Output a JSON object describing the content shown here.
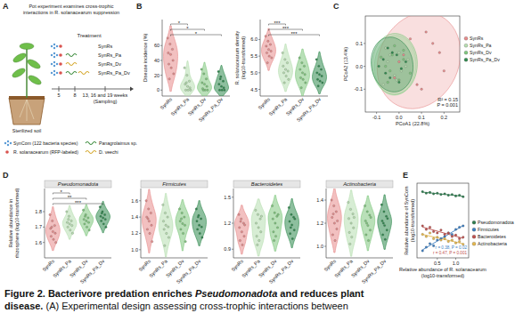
{
  "diagram_A": {
    "label": "A",
    "title": [
      "Pot experiment examines cross-trophic",
      "interactions in R. solanacearum suppression"
    ],
    "treatment_heading": "Treatment",
    "treatments": [
      "SynRs",
      "SynRs_Pa",
      "SynRs_Dv",
      "SynRs_Pa_Dv"
    ],
    "timeline": [
      "5",
      "8",
      "13, 16 and 19 weeks"
    ],
    "timeline_note": "(Sampling)",
    "soil_label": "Sterilized soil",
    "legend": [
      {
        "label": "SynCom (122 bacteria species)",
        "color": "#5b9bd5"
      },
      {
        "label": "R. solanacearum (RFP-labeled)",
        "color": "#d9534f"
      },
      {
        "label": "Panagrolaimus sp.",
        "color": "#3a8a3a"
      },
      {
        "label": "D. veechi",
        "color": "#d4a62a"
      }
    ]
  },
  "chart_data": [
    {
      "type": "violin",
      "label": "B",
      "ylabel": [
        "Disease incidence (%)"
      ],
      "categories": [
        "SynRs",
        "SynRs_Pa",
        "SynRs_Dv",
        "SynRs_Pa_Dv"
      ],
      "colors": [
        "#e88c8c",
        "#b7dfb0",
        "#7fc77d",
        "#2f8a4e"
      ],
      "values": [
        [
          70,
          62,
          55,
          50,
          48,
          40,
          35,
          30,
          22,
          15
        ],
        [
          30,
          20,
          12,
          8,
          5,
          3,
          0,
          0,
          0,
          10
        ],
        [
          28,
          22,
          15,
          10,
          8,
          5,
          2,
          0,
          0,
          0
        ],
        [
          25,
          18,
          12,
          8,
          5,
          3,
          0,
          0,
          0,
          15
        ]
      ],
      "ylim": [
        -8,
        95
      ],
      "yticks": [
        0,
        20,
        40,
        60
      ],
      "significance": [
        {
          "pair": [
            "SynRs",
            "SynRs_Pa"
          ],
          "label": "*"
        },
        {
          "pair": [
            "SynRs",
            "SynRs_Dv"
          ],
          "label": "*"
        },
        {
          "pair": [
            "SynRs",
            "SynRs_Pa_Dv"
          ],
          "label": "*"
        }
      ]
    },
    {
      "type": "violin",
      "ylabel": [
        "R. solanacearum density",
        "(log10-transformed)"
      ],
      "categories": [
        "SynRs",
        "SynRs_Pa",
        "SynRs_Dv",
        "SynRs_Pa_Dv"
      ],
      "colors": [
        "#e88c8c",
        "#b7dfb0",
        "#7fc77d",
        "#2f8a4e"
      ],
      "values": [
        [
          6.1,
          5.95,
          5.85,
          5.8,
          5.7,
          5.65,
          5.6,
          5.5,
          5.45,
          5.3
        ],
        [
          5.6,
          5.4,
          5.3,
          5.2,
          5.1,
          5.05,
          5.0,
          4.9,
          4.8,
          4.7
        ],
        [
          5.45,
          5.3,
          5.2,
          5.1,
          5.0,
          4.95,
          4.85,
          4.8,
          4.7,
          4.55
        ],
        [
          5.4,
          5.2,
          5.1,
          5.0,
          4.95,
          4.9,
          4.8,
          4.75,
          4.7,
          4.6
        ]
      ],
      "ylim": [
        4.3,
        6.6
      ],
      "yticks": [
        4.5,
        {
          "value": 5,
          "label": "5.0"
        },
        5.5,
        {
          "value": 6,
          "label": "6.0"
        }
      ],
      "significance": [
        {
          "pair": [
            "SynRs",
            "SynRs_Pa"
          ],
          "label": "***"
        },
        {
          "pair": [
            "SynRs",
            "SynRs_Dv"
          ],
          "label": "***"
        },
        {
          "pair": [
            "SynRs",
            "SynRs_Pa_Dv"
          ],
          "label": "***"
        }
      ]
    },
    {
      "type": "scatter",
      "label": "C",
      "xlabel": [
        "PCoA1 (22.8%)"
      ],
      "ylabel": [
        "PCoA2 (13.4%)"
      ],
      "xlim": [
        -0.15,
        0.27
      ],
      "ylim": [
        -0.2,
        0.22
      ],
      "xticks": [
        -0.1,
        {
          "value": 0,
          "label": "0.0"
        },
        0.1,
        0.2
      ],
      "yticks": [
        -0.1,
        {
          "value": 0,
          "label": "0.0"
        },
        0.1
      ],
      "legend": "right",
      "annotations": [
        "R² = 0.15",
        "P = 0.001"
      ],
      "series": [
        {
          "name": "SynRs",
          "color": "#e88c8c",
          "line_style": "ellipse",
          "x": [
            0.02,
            0.08,
            0.15,
            0.2,
            0.12,
            -0.02,
            0.05,
            0.18,
            0.1,
            0.0
          ],
          "values": [
            0.05,
            -0.08,
            0.1,
            -0.02,
            0.15,
            -0.05,
            0.12,
            0.06,
            -0.1,
            0.02
          ]
        },
        {
          "name": "SynRs_Pa",
          "color": "#b7dfb0",
          "line_style": "ellipse",
          "x": [
            -0.05,
            -0.02,
            0.0,
            0.03,
            -0.07,
            -0.04,
            0.01,
            0.04,
            -0.06,
            -0.01
          ],
          "values": [
            0.02,
            -0.04,
            0.06,
            0.0,
            -0.08,
            0.05,
            -0.02,
            0.03,
            0.08,
            -0.06
          ]
        },
        {
          "name": "SynRs_Dv",
          "color": "#7fc77d",
          "line_style": "ellipse",
          "x": [
            -0.06,
            -0.03,
            0.0,
            0.02,
            -0.08,
            -0.04,
            0.02,
            0.05,
            -0.05,
            -0.02
          ],
          "values": [
            0.0,
            0.05,
            -0.06,
            0.03,
            0.04,
            -0.02,
            0.07,
            -0.03,
            -0.07,
            0.09
          ]
        },
        {
          "name": "SynRs_Pa_Dv",
          "color": "#2f8a4e",
          "line_style": "ellipse",
          "x": [
            -0.07,
            -0.04,
            -0.01,
            0.01,
            -0.09,
            -0.05,
            0.0,
            0.03,
            -0.06,
            -0.03
          ],
          "values": [
            0.03,
            -0.05,
            0.05,
            -0.01,
            0.0,
            0.08,
            -0.07,
            0.02,
            -0.03,
            0.06
          ]
        }
      ]
    },
    {
      "type": "violin",
      "label": "D",
      "title": "Pseudomonadota",
      "ylabel": [
        "Relative abundance in",
        "rhizosphere (log10-transformed)"
      ],
      "categories": [
        "SynRs",
        "SynRs_Pa",
        "SynRs_Dv",
        "SynRs_Pa_Dv"
      ],
      "colors": [
        "#e88c8c",
        "#b7dfb0",
        "#7fc77d",
        "#2f8a4e"
      ],
      "values": [
        [
          1.78,
          1.74,
          1.71,
          1.69,
          1.67,
          1.66,
          1.64,
          1.62,
          1.6,
          1.7
        ],
        [
          1.8,
          1.77,
          1.74,
          1.73,
          1.72,
          1.71,
          1.7,
          1.68,
          1.66,
          1.75
        ],
        [
          1.81,
          1.78,
          1.76,
          1.75,
          1.74,
          1.73,
          1.72,
          1.7,
          1.68,
          1.77
        ],
        [
          1.83,
          1.8,
          1.78,
          1.77,
          1.76,
          1.75,
          1.74,
          1.72,
          1.7,
          1.79
        ]
      ],
      "ylim": [
        1.5,
        1.95
      ],
      "yticks": [
        1.6,
        1.7,
        1.8
      ],
      "significance": [
        {
          "pair": [
            "SynRs",
            "SynRs_Pa"
          ],
          "label": "*"
        },
        {
          "pair": [
            "SynRs",
            "SynRs_Dv"
          ],
          "label": "**"
        },
        {
          "pair": [
            "SynRs",
            "SynRs_Pa_Dv"
          ],
          "label": "***"
        }
      ]
    },
    {
      "type": "violin",
      "title": "Firmicutes",
      "categories": [
        "SynRs",
        "SynRs_Pa",
        "SynRs_Dv",
        "SynRs_Pa_Dv"
      ],
      "colors": [
        "#e88c8c",
        "#b7dfb0",
        "#7fc77d",
        "#2f8a4e"
      ],
      "values": [
        [
          1.6,
          1.5,
          1.45,
          1.4,
          1.35,
          1.3,
          1.25,
          1.2,
          1.1,
          1.38
        ],
        [
          1.55,
          1.45,
          1.4,
          1.35,
          1.3,
          1.28,
          1.25,
          1.2,
          1.15,
          1.05
        ],
        [
          1.5,
          1.45,
          1.4,
          1.35,
          1.32,
          1.3,
          1.25,
          1.2,
          1.1,
          1.38
        ],
        [
          1.5,
          1.42,
          1.38,
          1.35,
          1.3,
          1.28,
          1.25,
          1.2,
          1.15,
          1.4
        ]
      ],
      "ylim": [
        0.9,
        1.75
      ],
      "yticks": [
        {
          "value": 1,
          "label": "1.0"
        },
        1.2,
        1.4,
        1.6
      ]
    },
    {
      "type": "violin",
      "title": "Bacteroidetes",
      "categories": [
        "SynRs",
        "SynRs_Pa",
        "SynRs_Dv",
        "SynRs_Pa_Dv"
      ],
      "colors": [
        "#e88c8c",
        "#b7dfb0",
        "#7fc77d",
        "#2f8a4e"
      ],
      "values": [
        [
          1.3,
          1.25,
          1.2,
          1.15,
          1.1,
          1.05,
          1.0,
          0.95,
          1.18,
          1.22
        ],
        [
          1.35,
          1.3,
          1.25,
          1.2,
          1.15,
          1.1,
          1.05,
          1.0,
          1.28,
          0.95
        ],
        [
          1.4,
          1.32,
          1.28,
          1.25,
          1.2,
          1.15,
          1.1,
          1.05,
          1.3,
          1.0
        ],
        [
          1.38,
          1.3,
          1.27,
          1.22,
          1.18,
          1.12,
          1.08,
          1.02,
          1.25,
          1.15
        ]
      ],
      "ylim": [
        0.8,
        1.6
      ],
      "yticks": [
        0.9,
        1.2,
        1.5
      ]
    },
    {
      "type": "violin",
      "title": "Actinobacteria",
      "categories": [
        "SynRs",
        "SynRs_Pa",
        "SynRs_Dv",
        "SynRs_Pa_Dv"
      ],
      "colors": [
        "#e88c8c",
        "#b7dfb0",
        "#7fc77d",
        "#2f8a4e"
      ],
      "values": [
        [
          1.4,
          1.35,
          1.3,
          1.25,
          1.2,
          1.15,
          1.1,
          1.05,
          1.22,
          1.28
        ],
        [
          1.38,
          1.32,
          1.28,
          1.24,
          1.2,
          1.16,
          1.12,
          1.08,
          1.25,
          1.02
        ],
        [
          1.35,
          1.3,
          1.27,
          1.22,
          1.18,
          1.14,
          1.1,
          1.05,
          1.25,
          1.2
        ],
        [
          1.36,
          1.3,
          1.26,
          1.22,
          1.18,
          1.14,
          1.1,
          1.06,
          1.24,
          1.2
        ]
      ],
      "ylim": [
        0.9,
        1.5
      ],
      "yticks": [
        {
          "value": 1,
          "label": "1.0"
        },
        1.2,
        1.4
      ]
    },
    {
      "type": "scatter",
      "label": "E",
      "xlabel": [
        "Relative abundance of R. solanacearum",
        "(log10-transformed)"
      ],
      "ylabel": [
        "Relative abundance of SynCom",
        "(log10-transformed)"
      ],
      "xlim": [
        -0.05,
        1.35
      ],
      "ylim": [
        0.85,
        1.9
      ],
      "xticks": [
        0.5,
        {
          "value": 1,
          "label": "1.0"
        }
      ],
      "tick_labels": "x",
      "legend": "right",
      "annotations": [
        {
          "text": "r = 0.38, P = 0.02",
          "color": "#3b7fc4"
        },
        {
          "text": "r = 0.47, P = 0.001",
          "color": "#c0504d"
        }
      ],
      "series": [
        {
          "name": "Pseudomonadota",
          "color": "#2e7d4f",
          "line_style": "solid",
          "x": [
            0.1,
            0.2,
            0.3,
            0.4,
            0.5,
            0.6,
            0.7,
            0.8,
            0.9,
            1.0,
            1.1,
            1.2
          ],
          "values": [
            1.78,
            1.76,
            1.77,
            1.75,
            1.76,
            1.74,
            1.75,
            1.73,
            1.74,
            1.72,
            1.73,
            1.71
          ]
        },
        {
          "name": "Firmicutes",
          "color": "#3b7fc4",
          "line_style": "solid",
          "x": [
            0.1,
            0.2,
            0.3,
            0.4,
            0.5,
            0.6,
            0.7,
            0.8,
            0.9,
            1.0,
            1.1,
            1.2
          ],
          "values": [
            0.95,
            1.0,
            1.05,
            1.02,
            1.1,
            1.12,
            1.15,
            1.2,
            1.18,
            1.25,
            1.28,
            1.3
          ]
        },
        {
          "name": "Bacteroidetes",
          "color": "#c0504d",
          "line_style": "solid",
          "x": [
            0.1,
            0.2,
            0.3,
            0.4,
            0.5,
            0.6,
            0.7,
            0.8,
            0.9,
            1.0,
            1.1,
            1.2
          ],
          "values": [
            1.3,
            1.25,
            1.28,
            1.22,
            1.2,
            1.24,
            1.18,
            1.2,
            1.15,
            1.17,
            1.12,
            1.14
          ]
        },
        {
          "name": "Actinobacteria",
          "color": "#e6b84c",
          "line_style": "solid",
          "x": [
            0.1,
            0.2,
            0.3,
            0.4,
            0.5,
            0.6,
            0.7,
            0.8,
            0.9,
            1.0,
            1.1,
            1.2
          ],
          "values": [
            1.18,
            1.15,
            1.2,
            1.12,
            1.14,
            1.1,
            1.12,
            1.08,
            1.1,
            1.06,
            1.08,
            1.04
          ]
        }
      ]
    }
  ],
  "caption": {
    "lines": [
      [
        {
          "text": "Figure 2. Bacterivore predation enriches ",
          "style": "bold"
        },
        {
          "text": "Pseudomonadota",
          "style": "bold-italic"
        },
        {
          "text": " and reduces plant",
          "style": "bold"
        }
      ],
      [
        {
          "text": "disease.",
          "style": "bold"
        },
        {
          "text": " (A) Experimental design assessing cross-trophic interactions between",
          "style": "normal"
        }
      ]
    ]
  }
}
